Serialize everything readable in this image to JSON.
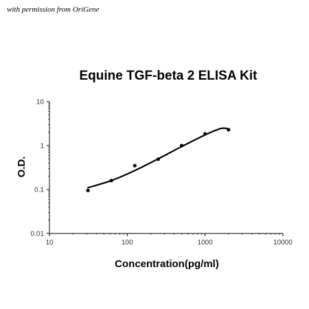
{
  "watermark": "with permission from OriGene",
  "chart_data": {
    "type": "scatter",
    "title": "Equine TGF-beta 2 ELISA Kit",
    "xlabel": "Concentration(pg/ml)",
    "ylabel": "O.D.",
    "xscale": "log",
    "yscale": "log",
    "xlim": [
      10,
      10000
    ],
    "ylim": [
      0.01,
      10
    ],
    "x_ticks": [
      10,
      100,
      1000,
      10000
    ],
    "x_tick_labels": [
      "10",
      "100",
      "1000",
      "10000"
    ],
    "y_ticks": [
      0.01,
      0.1,
      1,
      10
    ],
    "y_tick_labels": [
      "0.01",
      "0.1",
      "1",
      "10"
    ],
    "grid": false,
    "legend": false,
    "colors": {
      "points": "#000000",
      "curve": "#000000",
      "axes": "#000000"
    },
    "series": [
      {
        "points": [
          {
            "x": 31.25,
            "y": 0.095
          },
          {
            "x": 62.5,
            "y": 0.16
          },
          {
            "x": 125,
            "y": 0.35
          },
          {
            "x": 250,
            "y": 0.49
          },
          {
            "x": 500,
            "y": 1.0
          },
          {
            "x": 1000,
            "y": 1.85
          },
          {
            "x": 2000,
            "y": 2.3
          }
        ],
        "fit_curve": [
          {
            "x": 31.25,
            "y": 0.11
          },
          {
            "x": 62.5,
            "y": 0.16
          },
          {
            "x": 125,
            "y": 0.27
          },
          {
            "x": 250,
            "y": 0.5
          },
          {
            "x": 500,
            "y": 0.95
          },
          {
            "x": 1000,
            "y": 1.75
          },
          {
            "x": 1600,
            "y": 2.45
          },
          {
            "x": 2000,
            "y": 2.4
          }
        ]
      }
    ]
  }
}
